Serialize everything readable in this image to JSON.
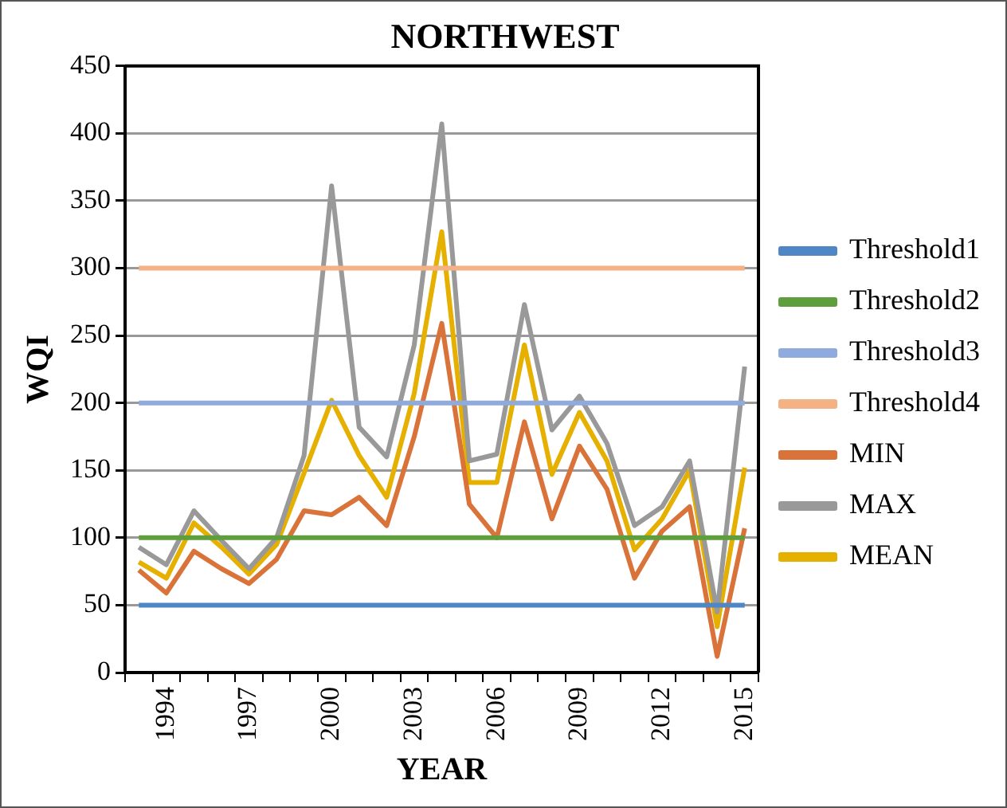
{
  "chart_data": {
    "type": "line",
    "title": "NORTHWEST",
    "xlabel": "YEAR",
    "ylabel": "WQI",
    "categories": [
      null,
      "1994",
      null,
      null,
      "1997",
      null,
      null,
      "2000",
      null,
      null,
      "2003",
      null,
      null,
      "2006",
      null,
      null,
      "2009",
      null,
      null,
      "2012",
      null,
      null,
      "2015"
    ],
    "series": [
      {
        "name": "Threshold1",
        "color": "#4e86c6",
        "values": [
          50,
          50,
          50,
          50,
          50,
          50,
          50,
          50,
          50,
          50,
          50,
          50,
          50,
          50,
          50,
          50,
          50,
          50,
          50,
          50,
          50,
          50,
          50
        ]
      },
      {
        "name": "Threshold2",
        "color": "#5e9e3c",
        "values": [
          100,
          100,
          100,
          100,
          100,
          100,
          100,
          100,
          100,
          100,
          100,
          100,
          100,
          100,
          100,
          100,
          100,
          100,
          100,
          100,
          100,
          100,
          100
        ]
      },
      {
        "name": "Threshold3",
        "color": "#8faadc",
        "values": [
          200,
          200,
          200,
          200,
          200,
          200,
          200,
          200,
          200,
          200,
          200,
          200,
          200,
          200,
          200,
          200,
          200,
          200,
          200,
          200,
          200,
          200,
          200
        ]
      },
      {
        "name": "Threshold4",
        "color": "#f4b183",
        "values": [
          300,
          300,
          300,
          300,
          300,
          300,
          300,
          300,
          300,
          300,
          300,
          300,
          300,
          300,
          300,
          300,
          300,
          300,
          300,
          300,
          300,
          300,
          300
        ]
      },
      {
        "name": "MIN",
        "color": "#d9733a",
        "values": [
          76,
          59,
          90,
          77,
          66,
          84,
          120,
          117,
          130,
          109,
          175,
          259,
          125,
          100,
          186,
          114,
          168,
          136,
          70,
          105,
          123,
          12,
          107
        ]
      },
      {
        "name": "MAX",
        "color": "#999999",
        "values": [
          93,
          80,
          120,
          98,
          77,
          100,
          161,
          361,
          182,
          160,
          243,
          407,
          157,
          162,
          273,
          180,
          205,
          170,
          109,
          123,
          157,
          45,
          227
        ]
      },
      {
        "name": "MEAN",
        "color": "#e6b000",
        "values": [
          82,
          70,
          111,
          93,
          73,
          95,
          148,
          202,
          161,
          130,
          207,
          327,
          141,
          141,
          243,
          147,
          193,
          157,
          91,
          114,
          150,
          34,
          152
        ]
      }
    ],
    "ylim": [
      0,
      450
    ],
    "yticks": [
      0,
      50,
      100,
      150,
      200,
      250,
      300,
      350,
      400,
      450
    ],
    "grid": "y",
    "legend": "right",
    "marker": "none"
  }
}
